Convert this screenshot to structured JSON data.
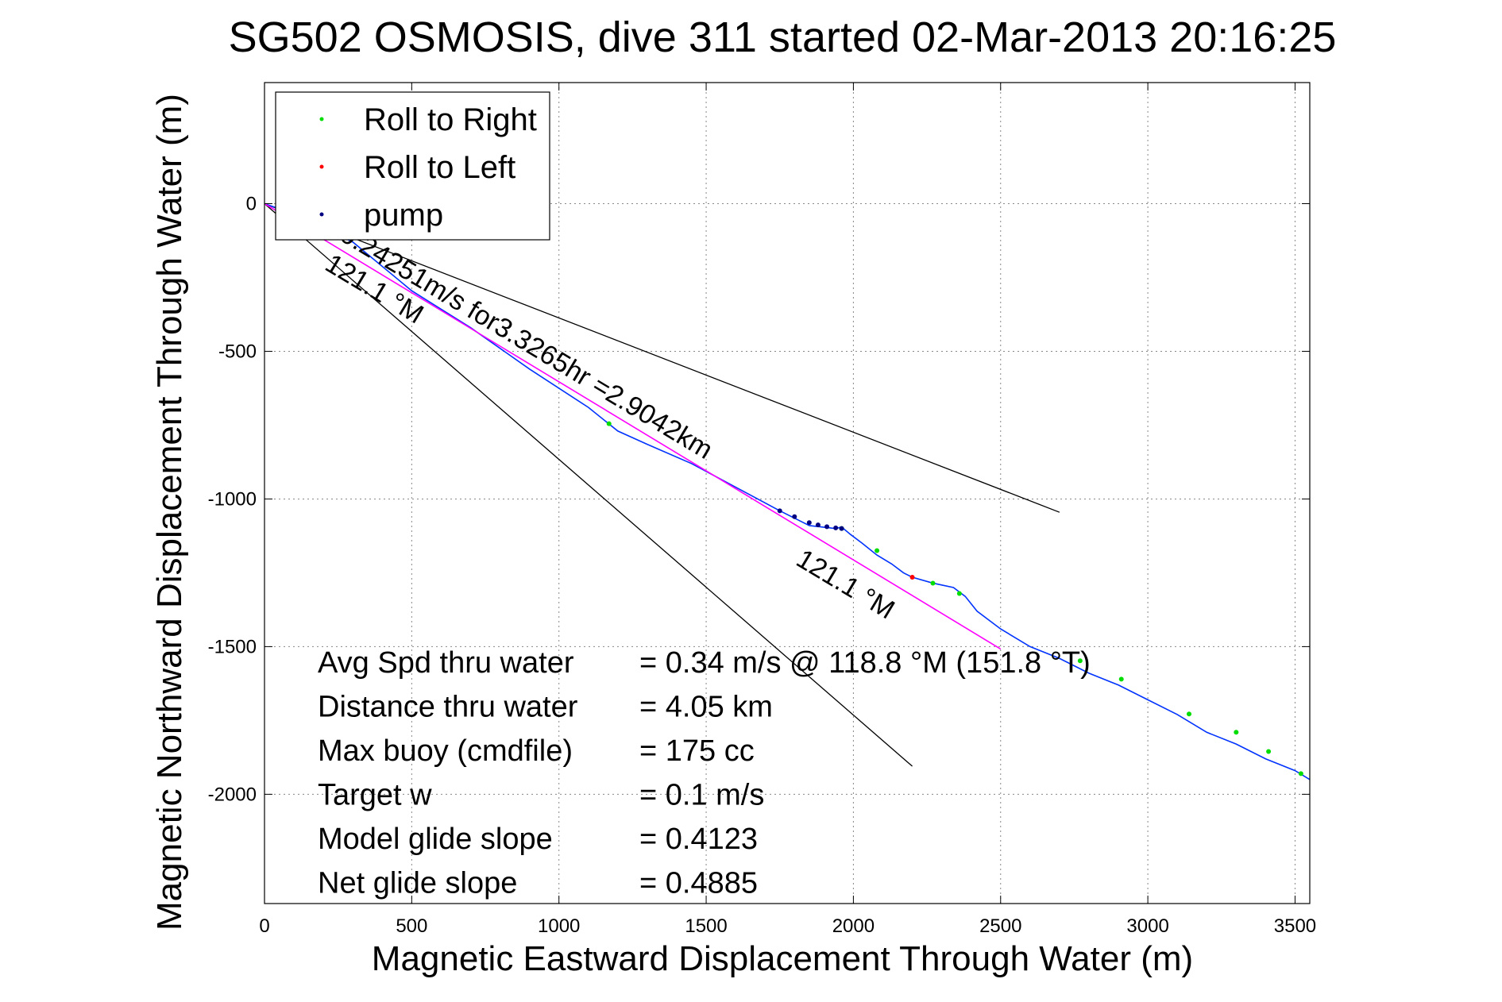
{
  "chart_data": {
    "type": "line",
    "title": "SG502 OSMOSIS, dive 311 started 02-Mar-2013 20:16:25",
    "xlabel": "Magnetic Eastward Displacement Through Water (m)",
    "ylabel": "Magnetic Northward Displacement Through Water (m)",
    "xlim": [
      0,
      3550
    ],
    "ylim": [
      -2370,
      410
    ],
    "xticks": [
      0,
      500,
      1000,
      1500,
      2000,
      2500,
      3000,
      3500
    ],
    "yticks": [
      0,
      -500,
      -1000,
      -1500,
      -2000
    ],
    "xtick_labels": [
      "0",
      "500",
      "1000",
      "1500",
      "2000",
      "2500",
      "3000",
      "3500"
    ],
    "ytick_labels": [
      "0",
      "-500",
      "-1000",
      "-1500",
      "-2000"
    ],
    "grid": true,
    "legend_position": "top-left",
    "legend": [
      {
        "label": "Roll to Right",
        "color": "#00dd00"
      },
      {
        "label": "Roll to Left",
        "color": "#ff0000"
      },
      {
        "label": "pump",
        "color": "#000080"
      }
    ],
    "series": [
      {
        "color": "#0033ff",
        "x": [
          0,
          100,
          300,
          500,
          700,
          900,
          1100,
          1200,
          1300,
          1450,
          1600,
          1750,
          1850,
          1940,
          1960,
          1990,
          2030,
          2080,
          2130,
          2170,
          2200,
          2270,
          2340,
          2380,
          2420,
          2500,
          2600,
          2700,
          2800,
          2900,
          3000,
          3100,
          3200,
          3300,
          3400,
          3500,
          3550
        ],
        "y": [
          0,
          -35,
          -130,
          -295,
          -420,
          -560,
          -690,
          -770,
          -815,
          -880,
          -960,
          -1040,
          -1090,
          -1100,
          -1095,
          -1120,
          -1150,
          -1190,
          -1220,
          -1250,
          -1265,
          -1285,
          -1300,
          -1330,
          -1380,
          -1440,
          -1500,
          -1540,
          -1590,
          -1630,
          -1680,
          -1730,
          -1790,
          -1830,
          -1880,
          -1920,
          -1950
        ]
      },
      {
        "color": "#ff00ff",
        "x": [
          0,
          2500
        ],
        "y": [
          0,
          -1508
        ]
      }
    ],
    "reference_lines": [
      {
        "x": [
          0,
          2700
        ],
        "y": [
          0,
          -1045
        ],
        "color": "#000000"
      },
      {
        "x": [
          0,
          2200
        ],
        "y": [
          0,
          -1905
        ],
        "color": "#000000"
      }
    ],
    "roll_right_points": {
      "x": [
        1170,
        1960,
        2080,
        2270,
        2360,
        2770,
        2910,
        3140,
        3300,
        3410,
        3520
      ],
      "y": [
        -745,
        -1100,
        -1175,
        -1285,
        -1320,
        -1548,
        -1610,
        -1728,
        -1790,
        -1855,
        -1930
      ]
    },
    "roll_left_points": {
      "x": [
        2200
      ],
      "y": [
        -1265
      ]
    },
    "pump_points": {
      "x": [
        1750,
        1800,
        1850,
        1880,
        1910,
        1940,
        1960
      ],
      "y": [
        -1040,
        -1060,
        -1080,
        -1088,
        -1094,
        -1098,
        -1100
      ]
    },
    "annotations": [
      {
        "text": "0.24251m/s for3.3265hr =2.9042km",
        "x": 250,
        "y": -120,
        "rotation_deg": 31
      },
      {
        "text": "121.1 °M",
        "x": 200,
        "y": -220,
        "rotation_deg": 31
      },
      {
        "text": "121.1 °M",
        "x": 1800,
        "y": -1220,
        "rotation_deg": 31
      }
    ],
    "stats": [
      {
        "label": "Avg Spd thru water",
        "value": "=  0.34 m/s @ 118.8 °M (151.8 °T)"
      },
      {
        "label": "Distance thru water",
        "value": "=  4.05 km"
      },
      {
        "label": "Max buoy (cmdfile)",
        "value": "= 175 cc"
      },
      {
        "label": "Target w",
        "value": "= 0.1 m/s"
      },
      {
        "label": "Model glide slope",
        "value": "= 0.4123"
      },
      {
        "label": "Net glide slope",
        "value": "= 0.4885"
      }
    ]
  }
}
